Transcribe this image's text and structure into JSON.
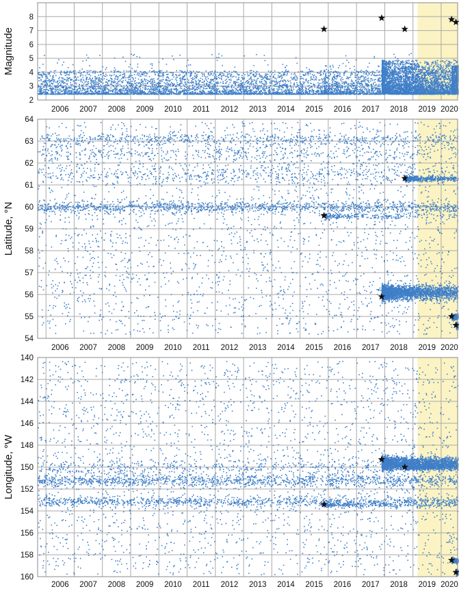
{
  "figure": {
    "highlight_color": "#fbf3c3",
    "point_color": "#3f7fc8",
    "star_color": "#111111",
    "grid_color": "#a9a9a9"
  },
  "chart_data": [
    {
      "type": "scatter",
      "name_id": "magnitude",
      "title": "",
      "xlabel": "",
      "ylabel": "Magnitude",
      "x_tick_labels": [
        "2006",
        "2007",
        "2008",
        "2009",
        "2010",
        "2011",
        "2012",
        "2013",
        "2014",
        "2015",
        "2016",
        "2017",
        "2018",
        "2019",
        "2020"
      ],
      "xlim": [
        "2005-09-15",
        "2020-08-01"
      ],
      "ylim": [
        2,
        9
      ],
      "y_ticks": [
        2,
        3,
        4,
        5,
        6,
        7,
        8
      ],
      "grid": true,
      "highlight_range": [
        "2019-03-01",
        "2020-08-01"
      ],
      "stars": [
        {
          "date": "2015-11-07",
          "value": 7.1
        },
        {
          "date": "2017-11-22",
          "value": 7.9
        },
        {
          "date": "2018-09-17",
          "value": 7.1
        },
        {
          "date": "2020-05-15",
          "value": 7.8
        },
        {
          "date": "2020-07-10",
          "value": 7.6
        }
      ],
      "notes": "dense background of small earthquakes M2.5-4, aftershock bursts after each large event"
    },
    {
      "type": "scatter",
      "name_id": "latitude",
      "title": "",
      "xlabel": "",
      "ylabel": "Latitude, °N",
      "x_tick_labels": [
        "2006",
        "2007",
        "2008",
        "2009",
        "2010",
        "2011",
        "2012",
        "2013",
        "2014",
        "2015",
        "2016",
        "2017",
        "2018",
        "2019",
        "2020"
      ],
      "xlim": [
        "2005-09-15",
        "2020-08-01"
      ],
      "ylim": [
        54,
        64
      ],
      "y_ticks": [
        54,
        55,
        56,
        57,
        58,
        59,
        60,
        61,
        62,
        63,
        64
      ],
      "grid": true,
      "highlight_range": [
        "2019-03-01",
        "2020-08-01"
      ],
      "stars": [
        {
          "date": "2015-11-07",
          "value": 59.6
        },
        {
          "date": "2017-11-22",
          "value": 55.9
        },
        {
          "date": "2018-09-17",
          "value": 61.3
        },
        {
          "date": "2020-05-15",
          "value": 55.0
        },
        {
          "date": "2020-07-10",
          "value": 54.6
        }
      ],
      "notes": "persistent seismicity band near 60°N; aftershock zone 55.6-56.6°N after 2018"
    },
    {
      "type": "scatter",
      "name_id": "longitude",
      "title": "",
      "xlabel": "",
      "ylabel": "Longitude, °W",
      "x_tick_labels": [
        "2006",
        "2007",
        "2008",
        "2009",
        "2010",
        "2011",
        "2012",
        "2013",
        "2014",
        "2015",
        "2016",
        "2017",
        "2018",
        "2019",
        "2020"
      ],
      "xlim": [
        "2005-09-15",
        "2020-08-01"
      ],
      "ylim": [
        140,
        160
      ],
      "y_inverted": true,
      "y_ticks": [
        140,
        142,
        144,
        146,
        148,
        150,
        152,
        154,
        156,
        158,
        160
      ],
      "grid": true,
      "highlight_range": [
        "2019-03-01",
        "2020-08-01"
      ],
      "stars": [
        {
          "date": "2015-11-07",
          "value": 153.4
        },
        {
          "date": "2017-11-22",
          "value": 149.3
        },
        {
          "date": "2018-09-17",
          "value": 150.0
        },
        {
          "date": "2020-05-15",
          "value": 158.5
        },
        {
          "date": "2020-07-10",
          "value": 159.6
        }
      ],
      "notes": "dense bands near 151°W and 153°W; aftershock cluster 148.5-150.5°W after 2018"
    }
  ]
}
